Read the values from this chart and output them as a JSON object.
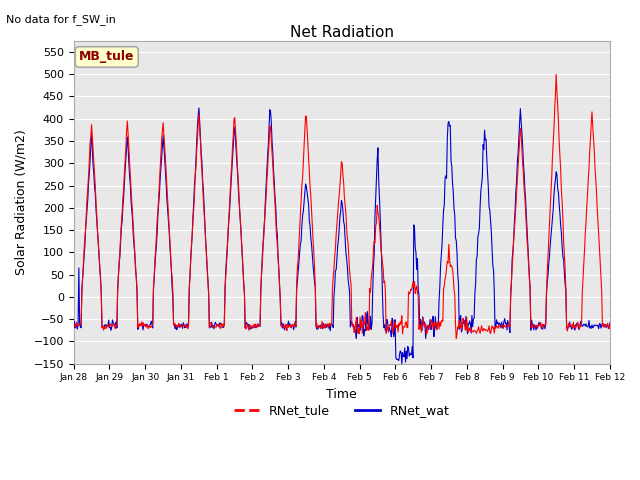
{
  "title": "Net Radiation",
  "xlabel": "Time",
  "ylabel": "Solar Radiation (W/m2)",
  "top_left_text": "No data for f_SW_in",
  "station_label": "MB_tule",
  "ylim": [
    -150,
    575
  ],
  "yticks": [
    -150,
    -100,
    -50,
    0,
    50,
    100,
    150,
    200,
    250,
    300,
    350,
    400,
    450,
    500,
    550
  ],
  "bg_color": "#e8e8e8",
  "line_color_tule": "#ff0000",
  "line_color_wat": "#0000cc",
  "legend_labels": [
    "RNet_tule",
    "RNet_wat"
  ],
  "xtick_labels": [
    "Jan 28",
    "Jan 29",
    "Jan 30",
    "Jan 31",
    "Feb 1",
    "Feb 2",
    "Feb 3",
    "Feb 4",
    "Feb 5",
    "Feb 6",
    "Feb 7",
    "Feb 8",
    "Feb 9",
    "Feb 10",
    "Feb 11",
    "Feb 12"
  ],
  "num_days": 15,
  "figsize": [
    6.4,
    4.8
  ],
  "dpi": 100
}
